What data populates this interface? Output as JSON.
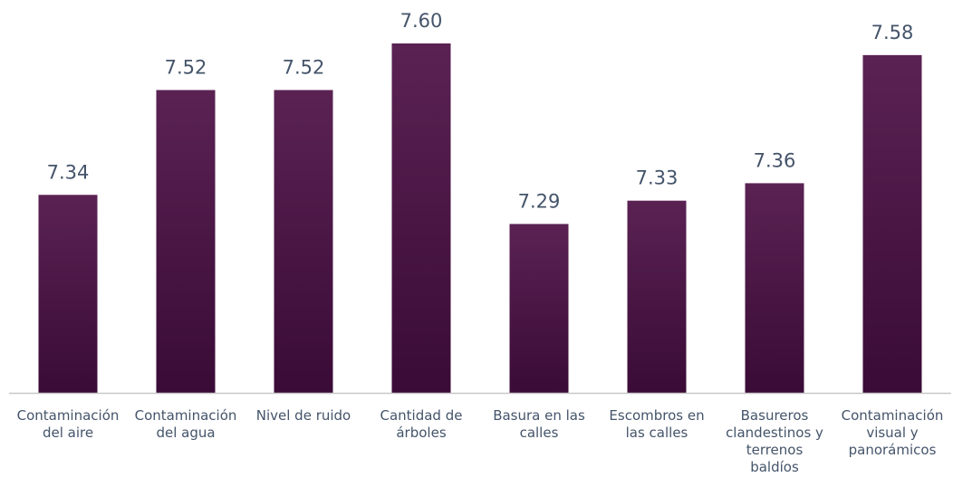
{
  "chart_data": {
    "type": "bar",
    "title": "",
    "xlabel": "",
    "ylabel": "",
    "categories": [
      [
        "Contaminación",
        "del aire"
      ],
      [
        "Contaminación",
        "del agua"
      ],
      [
        "Nivel de ruido"
      ],
      [
        "Cantidad de",
        "árboles"
      ],
      [
        "Basura en las",
        "calles"
      ],
      [
        "Escombros en",
        "las calles"
      ],
      [
        "Basureros",
        "clandestinos y",
        "terrenos",
        "baldíos"
      ],
      [
        "Contaminación",
        "visual y",
        "panorámicos"
      ]
    ],
    "values": [
      7.34,
      7.52,
      7.52,
      7.6,
      7.29,
      7.33,
      7.36,
      7.58
    ],
    "value_labels": [
      "7.34",
      "7.52",
      "7.52",
      "7.60",
      "7.29",
      "7.33",
      "7.36",
      "7.58"
    ],
    "ylim": [
      7.0,
      7.6
    ],
    "grid": false,
    "legend": "none",
    "colors": {
      "bar_top": "#5a2253",
      "bar_bottom": "#3a0b36",
      "axis": "#c8c8c8",
      "text": "#44546a"
    }
  }
}
